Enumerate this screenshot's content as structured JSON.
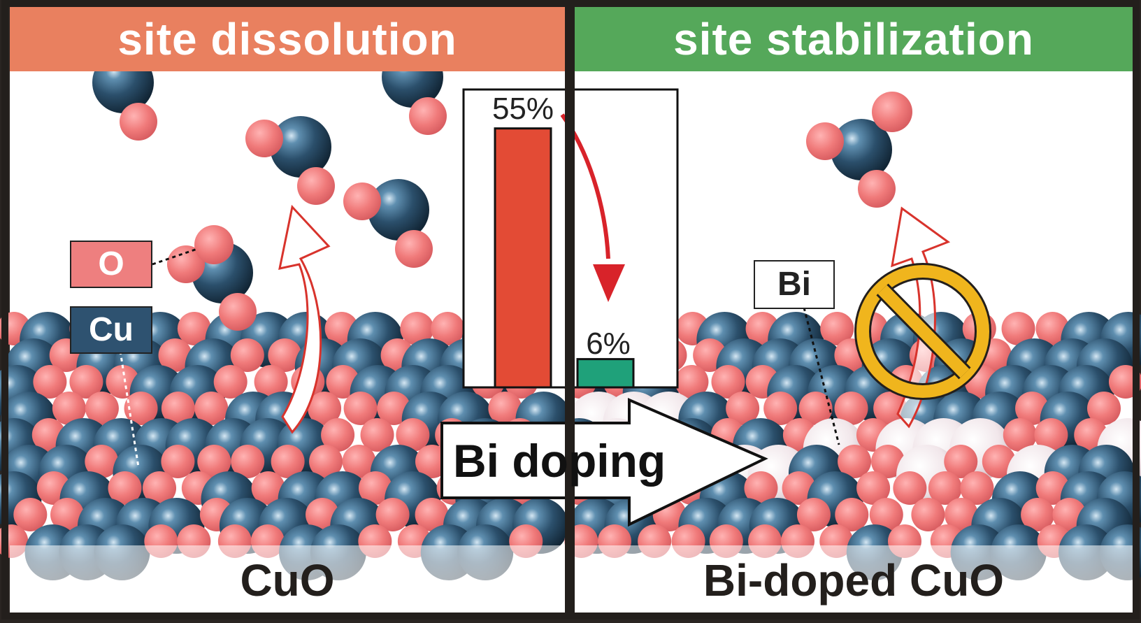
{
  "left_panel": {
    "title": "site dissolution",
    "title_color": "#e9805f",
    "material_label": "CuO"
  },
  "right_panel": {
    "title": "site stabilization",
    "title_color": "#55a85a",
    "material_label": "Bi-doped CuO"
  },
  "legend": {
    "oxygen_label": "O",
    "copper_label": "Cu",
    "bismuth_label": "Bi",
    "oxygen_color": "#ee7f7f",
    "copper_color": "#2e5270",
    "bismuth_color": "#f2eef0"
  },
  "center_arrow": {
    "label": "Bi doping"
  },
  "chart_data": {
    "type": "bar",
    "categories": [
      "CuO",
      "Bi-doped CuO"
    ],
    "values": [
      55,
      6
    ],
    "value_labels": [
      "55%",
      "6%"
    ],
    "colors": [
      "#e34b35",
      "#1fa17a"
    ],
    "ylim": [
      0,
      60
    ],
    "title": "",
    "xlabel": "",
    "ylabel": ""
  },
  "icons": {
    "dissolution_arrow": "curved-up-arrow-icon",
    "prohibited": "no-entry-icon"
  }
}
